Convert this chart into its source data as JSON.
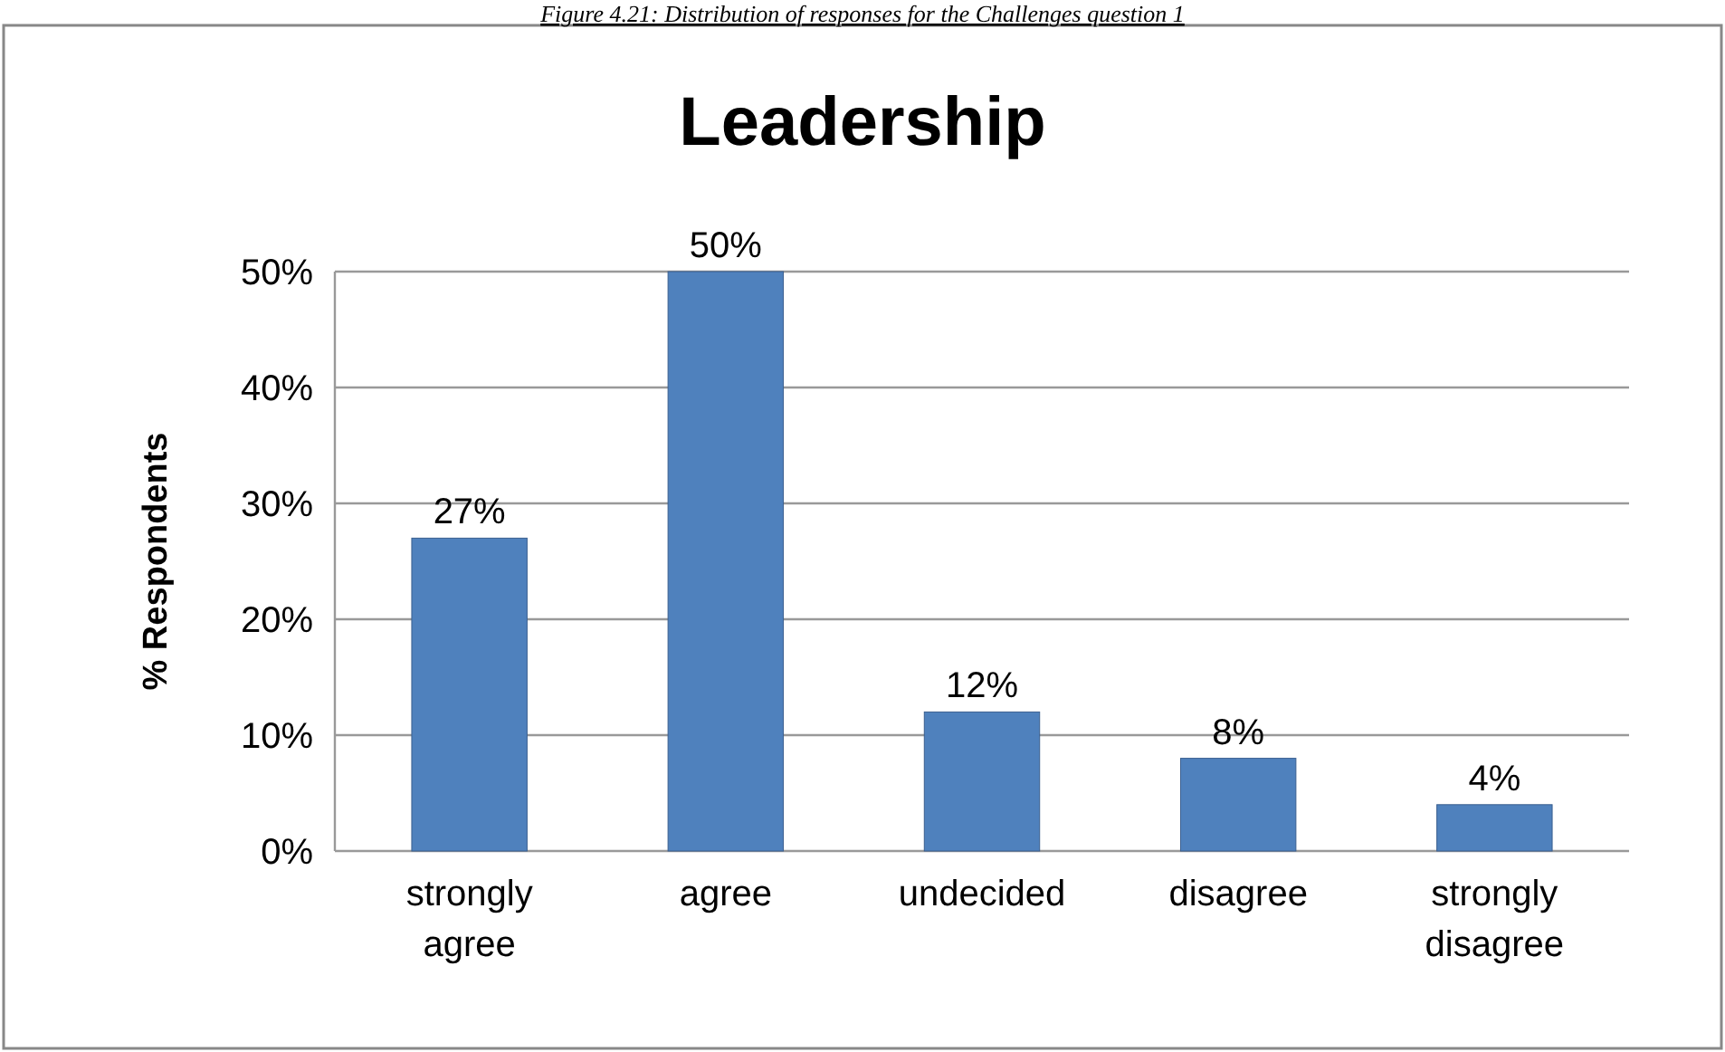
{
  "chart_data": {
    "type": "bar",
    "title": "Leadership",
    "ylabel": "% Respondents",
    "annotations": [
      "Figure 4.21: Distribution of responses for the Challenges question 1"
    ],
    "categories": [
      "strongly agree",
      "agree",
      "undecided",
      "disagree",
      "strongly disagree"
    ],
    "values": [
      27,
      50,
      12,
      8,
      4
    ],
    "color": "#4f81bd",
    "value_labels": [
      "27%",
      "50%",
      "12%",
      "8%",
      "4%"
    ],
    "ylim": [
      0,
      50
    ],
    "yticks": [
      {
        "value": 0,
        "label": "0%"
      },
      {
        "value": 10,
        "label": "10%"
      },
      {
        "value": 20,
        "label": "20%"
      },
      {
        "value": 30,
        "label": "30%"
      },
      {
        "value": 40,
        "label": "40%"
      },
      {
        "value": 50,
        "label": "50%"
      }
    ],
    "grid": "y"
  }
}
